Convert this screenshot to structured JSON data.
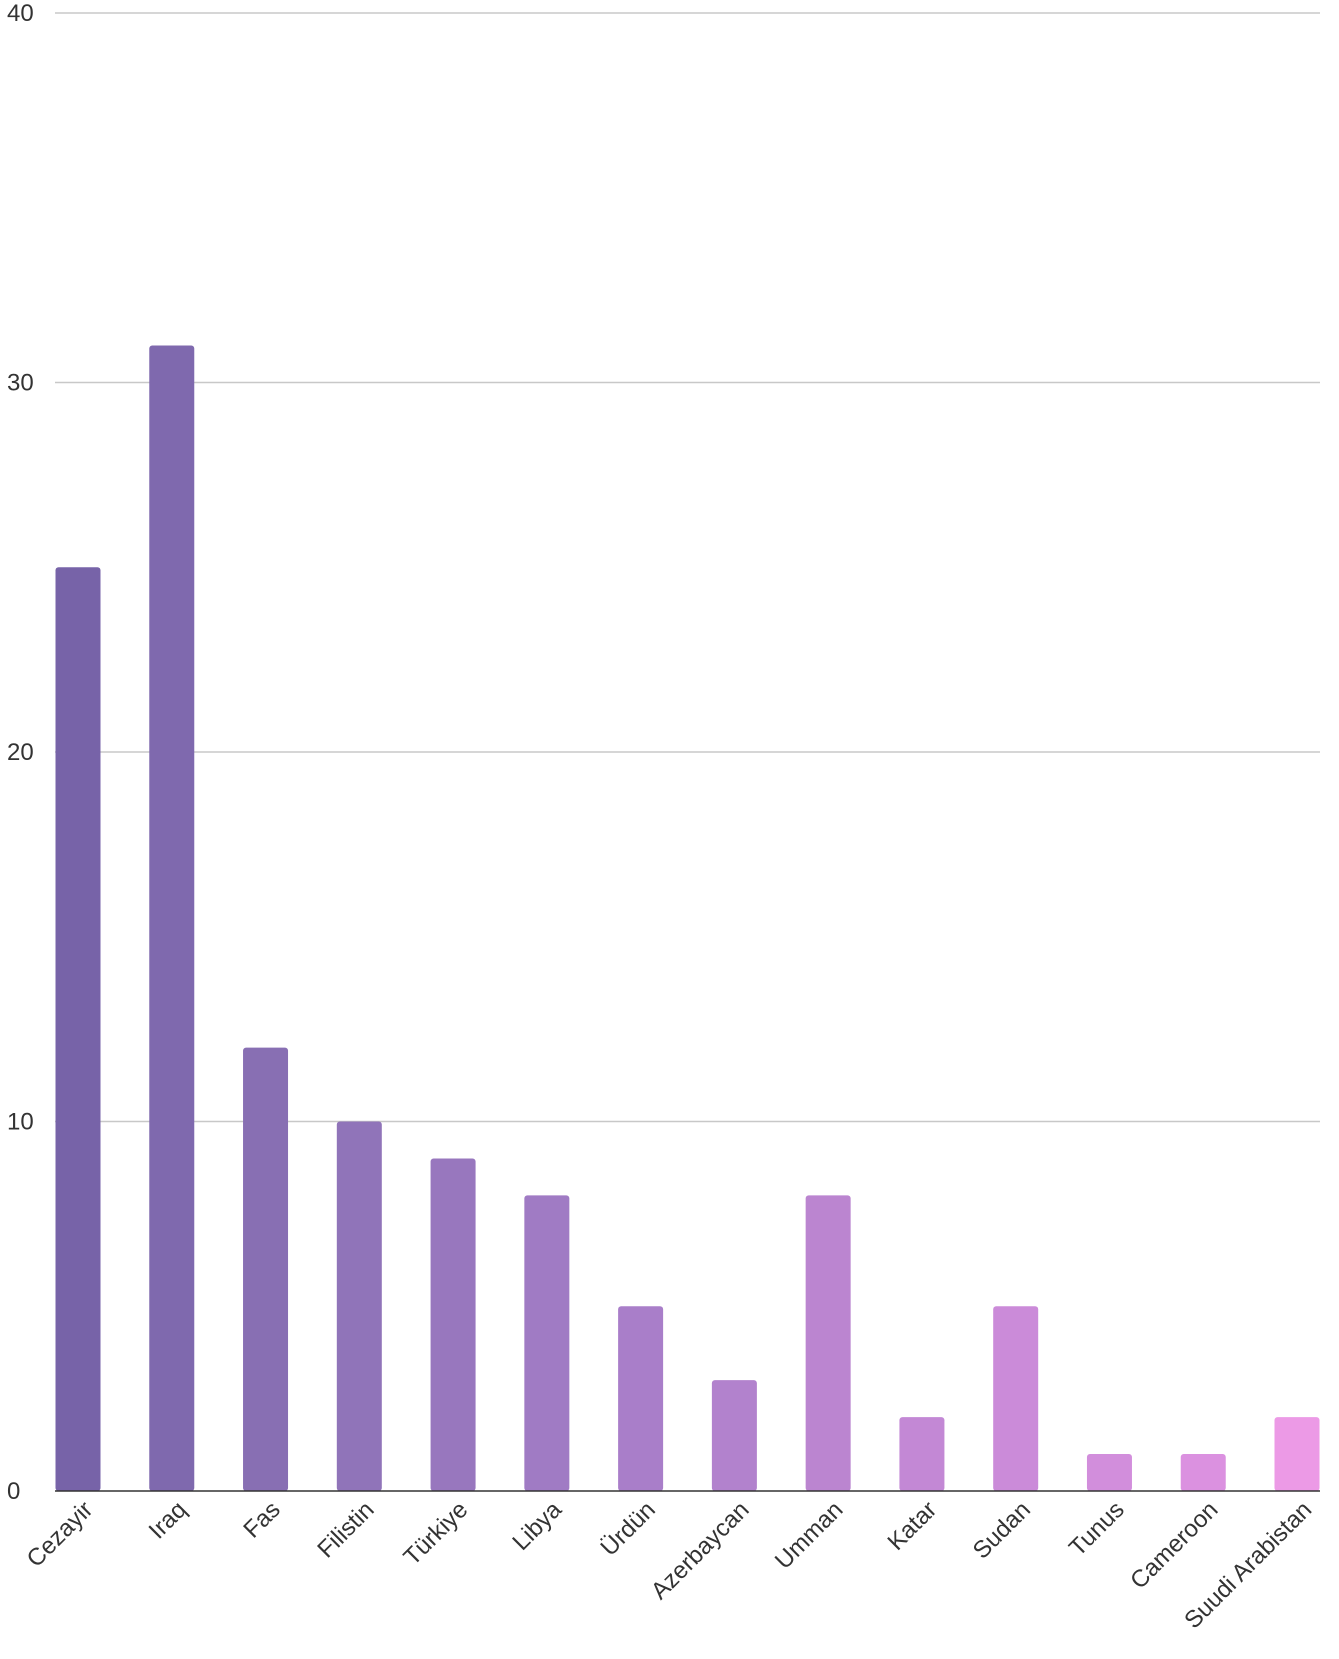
{
  "chart_data": {
    "type": "bar",
    "title": "",
    "xlabel": "",
    "ylabel": "",
    "ylim": [
      0,
      40
    ],
    "yticks": [
      0,
      10,
      20,
      30,
      40
    ],
    "grid": true,
    "categories": [
      "Cezayir",
      "Iraq",
      "Fas",
      "Filistin",
      "Türkiye",
      "Libya",
      "Ürdün",
      "Azerbaycan",
      "Umman",
      "Katar",
      "Sudan",
      "Tunus",
      "Cameroon",
      "Suudi Arabistan"
    ],
    "values": [
      25,
      31,
      12,
      10,
      9,
      8,
      5,
      3,
      8,
      2,
      5,
      1,
      1,
      2
    ],
    "bar_colors": [
      "#7763a8",
      "#7f69ae",
      "#886fb3",
      "#9074b9",
      "#9877be",
      "#a07bc4",
      "#a97ec9",
      "#b282cd",
      "#bb85d0",
      "#c388d5",
      "#cb8bd9",
      "#d28edc",
      "#db91e0",
      "#ec9ae6"
    ]
  }
}
